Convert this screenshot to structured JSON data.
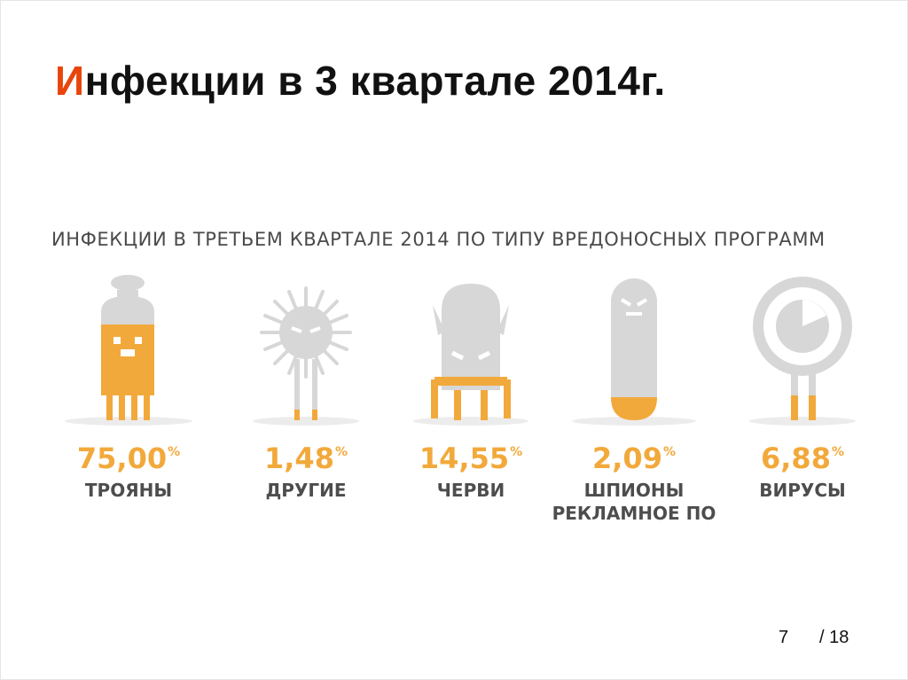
{
  "slide": {
    "title_first": "И",
    "title_rest": "нфекции в 3 квартале 2014г.",
    "subtitle": "ИНФЕКЦИИ В ТРЕТЬЕМ КВАРТАЛЕ 2014 ПО ТИПУ ВРЕДОНОСНЫХ ПРОГРАММ",
    "colors": {
      "accent_red": "#e8450c",
      "accent_orange": "#f2a93b",
      "character_gray": "#d7d7d7"
    }
  },
  "categories": [
    {
      "icon": "trojan-character-icon",
      "value": "75,00",
      "unit": "%",
      "label": "ТРОЯНЫ",
      "label2": ""
    },
    {
      "icon": "other-spiky-character-icon",
      "value": "1,48",
      "unit": "%",
      "label": "ДРУГИЕ",
      "label2": ""
    },
    {
      "icon": "worm-character-icon",
      "value": "14,55",
      "unit": "%",
      "label": "ЧЕРВИ",
      "label2": ""
    },
    {
      "icon": "spyware-character-icon",
      "value": "2,09",
      "unit": "%",
      "label": "ШПИОНЫ",
      "label2": "РЕКЛАМНОЕ ПО"
    },
    {
      "icon": "virus-character-icon",
      "value": "6,88",
      "unit": "%",
      "label": "ВИРУСЫ",
      "label2": ""
    }
  ],
  "pager": {
    "current": "7",
    "total": "/ 18"
  }
}
